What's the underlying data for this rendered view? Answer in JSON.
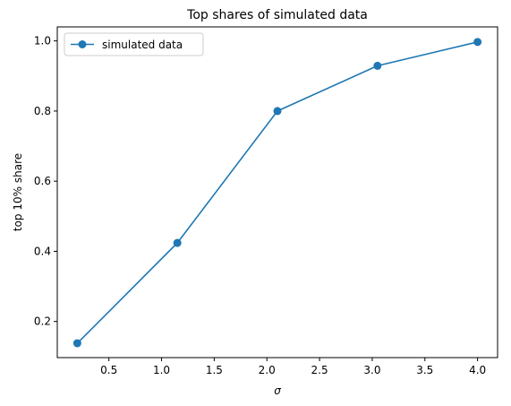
{
  "chart_data": {
    "type": "line",
    "title": "Top shares of simulated data",
    "xlabel": "σ",
    "ylabel": "top 10% share",
    "xlim": [
      0.01,
      4.19
    ],
    "ylim": [
      0.097,
      1.04
    ],
    "xticks": [
      0.5,
      1.0,
      1.5,
      2.0,
      2.5,
      3.0,
      3.5,
      4.0
    ],
    "xtick_labels": [
      "0.5",
      "1.0",
      "1.5",
      "2.0",
      "2.5",
      "3.0",
      "3.5",
      "4.0"
    ],
    "yticks": [
      0.2,
      0.4,
      0.6,
      0.8,
      1.0
    ],
    "ytick_labels": [
      "0.2",
      "0.4",
      "0.6",
      "0.8",
      "1.0"
    ],
    "grid": false,
    "legend_position": "upper-left",
    "series": [
      {
        "name": "simulated data",
        "color": "#1f77b4",
        "marker": "circle",
        "x": [
          0.2,
          1.15,
          2.1,
          3.05,
          4.0
        ],
        "y": [
          0.138,
          0.424,
          0.8,
          0.929,
          0.997
        ]
      }
    ]
  }
}
